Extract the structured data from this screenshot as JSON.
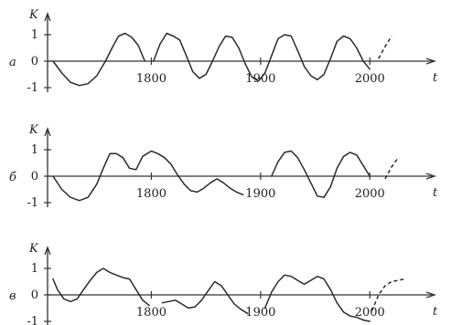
{
  "chart_data": [
    {
      "type": "line",
      "panel_label": "а",
      "ylabel": "K",
      "xlabel": "t",
      "ylim": [
        -1.2,
        1.3
      ],
      "y_ticks": [
        "1",
        "0",
        "-1"
      ],
      "x_ticks": [
        "1800",
        "1900",
        "2000"
      ],
      "series": [
        {
          "style": "solid",
          "x": [
            1710,
            1718,
            1726,
            1734,
            1742,
            1750,
            1758,
            1764,
            1770,
            1776,
            1782,
            1788,
            1794
          ],
          "y": [
            0.0,
            -0.45,
            -0.8,
            -0.92,
            -0.85,
            -0.55,
            0.0,
            0.5,
            0.95,
            1.05,
            0.9,
            0.6,
            0.0
          ]
        },
        {
          "style": "solid",
          "x": [
            1802,
            1808,
            1814,
            1820,
            1826,
            1832,
            1838,
            1844,
            1850
          ],
          "y": [
            0.0,
            0.65,
            1.05,
            0.95,
            0.8,
            0.2,
            -0.4,
            -0.65,
            -0.5
          ]
        },
        {
          "style": "solid",
          "x": [
            1850,
            1856,
            1862,
            1868,
            1874,
            1880,
            1886,
            1892,
            1898,
            1904
          ],
          "y": [
            -0.5,
            0.0,
            0.55,
            0.95,
            0.9,
            0.5,
            -0.1,
            -0.6,
            -0.75,
            -0.45
          ]
        },
        {
          "style": "solid",
          "x": [
            1904,
            1910,
            1916,
            1922,
            1928,
            1934,
            1940,
            1946,
            1952,
            1958,
            1964,
            1970,
            1976,
            1982,
            1988,
            1994,
            2000
          ],
          "y": [
            -0.45,
            0.2,
            0.85,
            1.0,
            0.95,
            0.4,
            -0.2,
            -0.55,
            -0.7,
            -0.5,
            0.1,
            0.75,
            0.95,
            0.85,
            0.5,
            0.0,
            -0.3
          ]
        },
        {
          "style": "dashed",
          "x": [
            2008,
            2014,
            2020
          ],
          "y": [
            0.1,
            0.55,
            0.95
          ]
        }
      ]
    },
    {
      "type": "line",
      "panel_label": "б",
      "ylabel": "K",
      "xlabel": "t",
      "ylim": [
        -1.2,
        1.3
      ],
      "y_ticks": [
        "1",
        "0",
        "-1"
      ],
      "x_ticks": [
        "1800",
        "1900",
        "2000"
      ],
      "series": [
        {
          "style": "solid",
          "x": [
            1710,
            1718,
            1726,
            1734,
            1742,
            1750,
            1756,
            1762,
            1768,
            1774,
            1780,
            1786,
            1792,
            1800,
            1806,
            1812,
            1818,
            1824,
            1830,
            1836,
            1842,
            1848,
            1854,
            1860,
            1866,
            1872,
            1878,
            1884
          ],
          "y": [
            0.0,
            -0.5,
            -0.8,
            -0.92,
            -0.8,
            -0.3,
            0.3,
            0.85,
            0.85,
            0.7,
            0.3,
            0.25,
            0.75,
            0.95,
            0.85,
            0.7,
            0.45,
            0.05,
            -0.3,
            -0.55,
            -0.6,
            -0.45,
            -0.25,
            -0.1,
            -0.25,
            -0.45,
            -0.6,
            -0.7
          ]
        },
        {
          "style": "solid",
          "x": [
            1910,
            1916,
            1922,
            1928,
            1934,
            1940,
            1946,
            1952,
            1958,
            1964,
            1970,
            1976,
            1982,
            1988,
            1994,
            2000
          ],
          "y": [
            0.0,
            0.55,
            0.9,
            0.95,
            0.7,
            0.25,
            -0.25,
            -0.75,
            -0.8,
            -0.4,
            0.3,
            0.75,
            0.9,
            0.8,
            0.4,
            0.0
          ]
        },
        {
          "style": "dashed",
          "x": [
            2014,
            2020,
            2026
          ],
          "y": [
            -0.1,
            0.35,
            0.7
          ]
        }
      ]
    },
    {
      "type": "line",
      "panel_label": "в",
      "ylabel": "K",
      "xlabel": "t",
      "ylim": [
        -1.2,
        1.3
      ],
      "y_ticks": [
        "1",
        "0",
        "-1"
      ],
      "x_ticks": [
        "1800",
        "1900",
        "2000"
      ],
      "series": [
        {
          "style": "solid",
          "x": [
            1710,
            1714,
            1720,
            1726,
            1732,
            1738,
            1744,
            1750,
            1756,
            1762,
            1768,
            1774,
            1780,
            1786,
            1792,
            1798
          ],
          "y": [
            0.6,
            0.2,
            -0.15,
            -0.25,
            -0.15,
            0.2,
            0.55,
            0.85,
            1.0,
            0.85,
            0.75,
            0.65,
            0.6,
            0.2,
            -0.2,
            -0.4
          ]
        },
        {
          "style": "solid",
          "x": [
            1810,
            1816,
            1822,
            1828,
            1834,
            1840,
            1846,
            1852,
            1858,
            1864,
            1870,
            1876,
            1882,
            1888
          ],
          "y": [
            -0.3,
            -0.25,
            -0.2,
            -0.35,
            -0.5,
            -0.45,
            -0.2,
            0.15,
            0.5,
            0.35,
            0.0,
            -0.35,
            -0.55,
            -0.7
          ]
        },
        {
          "style": "solid",
          "x": [
            1904,
            1910,
            1916,
            1922,
            1928,
            1934,
            1940,
            1946,
            1952,
            1958,
            1964,
            1970,
            1976,
            1982,
            1988,
            1994,
            2000
          ],
          "y": [
            -0.5,
            0.1,
            0.5,
            0.75,
            0.7,
            0.55,
            0.4,
            0.55,
            0.7,
            0.6,
            0.2,
            -0.3,
            -0.65,
            -0.8,
            -0.85,
            -0.95,
            -1.0
          ]
        },
        {
          "style": "dashed",
          "x": [
            2002,
            2008,
            2014,
            2020,
            2026,
            2032
          ],
          "y": [
            -0.6,
            0.0,
            0.35,
            0.5,
            0.55,
            0.6
          ]
        }
      ]
    }
  ]
}
